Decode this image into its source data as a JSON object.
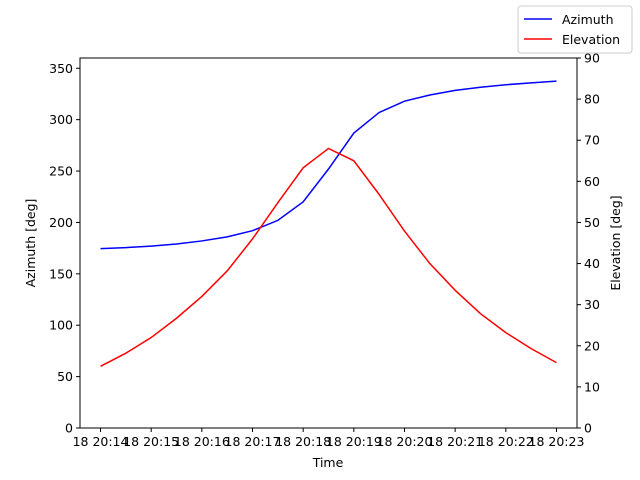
{
  "chart_data": {
    "type": "line",
    "xlabel": "Time",
    "ylabel_left": "Azimuth [deg]",
    "ylabel_right": "Elevation [deg]",
    "x_ticks": [
      "18 20:14",
      "18 20:15",
      "18 20:16",
      "18 20:17",
      "18 20:18",
      "18 20:19",
      "18 20:20",
      "18 20:21",
      "18 20:22",
      "18 20:23"
    ],
    "x_tick_minutes": [
      14,
      15,
      16,
      17,
      18,
      19,
      20,
      21,
      22,
      23
    ],
    "x_minutes": [
      14.0,
      14.5,
      15.0,
      15.5,
      16.0,
      16.5,
      17.0,
      17.5,
      18.0,
      18.5,
      19.0,
      19.5,
      20.0,
      20.5,
      21.0,
      21.5,
      22.0,
      22.5,
      23.0
    ],
    "ylim_left": [
      0,
      360
    ],
    "ylim_right": [
      0,
      90
    ],
    "yticks_left": [
      0,
      50,
      100,
      150,
      200,
      250,
      300,
      350
    ],
    "yticks_right": [
      0,
      10,
      20,
      30,
      40,
      50,
      60,
      70,
      80,
      90
    ],
    "grid": false,
    "legend_position": "top-right",
    "series": [
      {
        "name": "Azimuth",
        "axis": "left",
        "color": "#0000ff",
        "values": [
          174.5,
          175.5,
          177,
          179,
          182,
          186,
          192,
          202,
          220,
          252,
          287,
          307,
          318,
          324,
          328.5,
          331.5,
          334,
          335.8,
          337.5
        ]
      },
      {
        "name": "Elevation",
        "axis": "right",
        "color": "#ff0000",
        "values": [
          15,
          18.2,
          22,
          26.7,
          32,
          38.2,
          46,
          54.8,
          63.3,
          68,
          65,
          56.8,
          47.9,
          40,
          33.5,
          27.8,
          23.2,
          19.3,
          15.9
        ]
      }
    ]
  }
}
